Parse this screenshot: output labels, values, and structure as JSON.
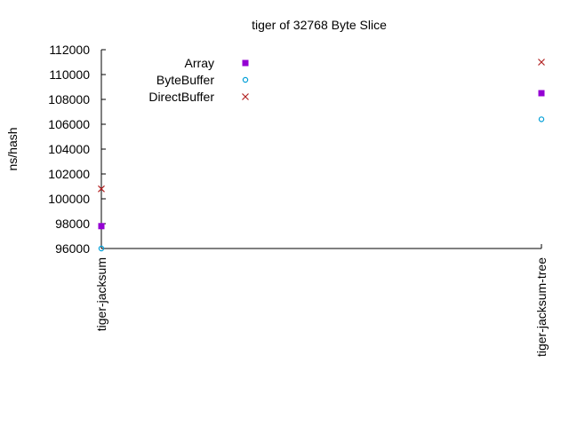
{
  "chart_data": {
    "type": "scatter",
    "title": "tiger of 32768 Byte Slice",
    "ylabel": "ns/hash",
    "xlabel": "",
    "categories": [
      "tiger-jacksum",
      "tiger-jacksum-tree"
    ],
    "ylim": [
      96000,
      112000
    ],
    "yticks": [
      "96000",
      "98000",
      "100000",
      "102000",
      "104000",
      "106000",
      "108000",
      "110000",
      "112000"
    ],
    "grid": false,
    "legend_position": "top-left",
    "series": [
      {
        "name": "Array",
        "marker": "filled-square",
        "color": "#9400d3",
        "values": [
          97800,
          108500
        ]
      },
      {
        "name": "ByteBuffer",
        "marker": "circle",
        "color": "#009ed7",
        "values": [
          96000,
          106400
        ]
      },
      {
        "name": "DirectBuffer",
        "marker": "x",
        "color": "#b22222",
        "values": [
          100800,
          111000
        ]
      }
    ]
  }
}
